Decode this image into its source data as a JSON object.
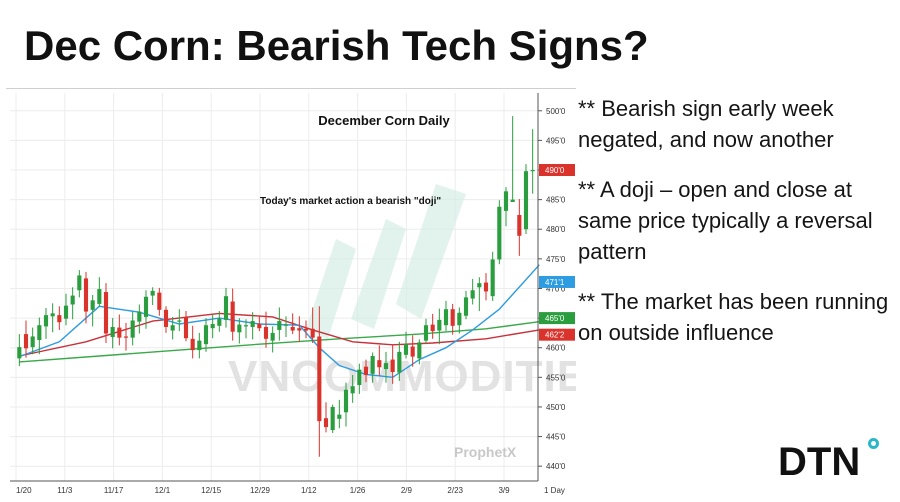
{
  "slide": {
    "title": "Dec Corn: Bearish Tech Signs?",
    "bullets": [
      "** Bearish sign early week negated, and now another",
      "** A doji – open and close at same price typically a reversal pattern",
      "** The market has been running on outside influence"
    ],
    "logo": "DTN",
    "logo_accent_color": "#2bb6c9"
  },
  "chart_data": {
    "type": "candlestick",
    "title": "December Corn Daily",
    "annotation": "Today's market action a bearish \"doji\"",
    "watermarks": [
      "VNCOMMODITIES",
      "ProphetX"
    ],
    "x_tick_labels": [
      "1/20",
      "11/3",
      "11/17",
      "12/1",
      "12/15",
      "12/29",
      "1/12",
      "1/26",
      "2/9",
      "2/23",
      "3/9",
      "1 Day"
    ],
    "y_tick_labels": [
      "500'0",
      "495'0",
      "490'0",
      "485'0",
      "480'0",
      "475'0",
      "470'0",
      "465'0",
      "460'0",
      "455'0",
      "450'0",
      "445'0",
      "440'0"
    ],
    "ylim": [
      437.5,
      503
    ],
    "price_tags": [
      {
        "label": "490'0",
        "value": 490,
        "color": "#d9332c"
      },
      {
        "label": "471'1",
        "value": 471.1,
        "color": "#2e9ce0"
      },
      {
        "label": "465'0",
        "value": 465,
        "color": "#2a9d3e"
      },
      {
        "label": "462'2",
        "value": 462.2,
        "color": "#d9332c"
      }
    ],
    "colors": {
      "up": "#2a9d3e",
      "down": "#d9332c",
      "ma_blue": "#2e9ce0",
      "ma_red": "#c8303a",
      "ma_green": "#39a94a"
    },
    "candles": [
      {
        "o": 458.2,
        "h": 462.3,
        "l": 456.9,
        "c": 460.1
      },
      {
        "o": 462.3,
        "h": 464.6,
        "l": 458.3,
        "c": 459.9
      },
      {
        "o": 460.1,
        "h": 463.4,
        "l": 458.9,
        "c": 461.9
      },
      {
        "o": 461.3,
        "h": 465.1,
        "l": 458.9,
        "c": 463.8
      },
      {
        "o": 463.6,
        "h": 466.7,
        "l": 461.5,
        "c": 465.5
      },
      {
        "o": 465.3,
        "h": 467.5,
        "l": 462.6,
        "c": 465.8
      },
      {
        "o": 465.5,
        "h": 467.0,
        "l": 463.0,
        "c": 464.3
      },
      {
        "o": 464.9,
        "h": 469.1,
        "l": 463.8,
        "c": 467.1
      },
      {
        "o": 467.3,
        "h": 470.2,
        "l": 464.8,
        "c": 468.8
      },
      {
        "o": 469.7,
        "h": 473.1,
        "l": 468.5,
        "c": 472.2
      },
      {
        "o": 471.7,
        "h": 472.8,
        "l": 464.1,
        "c": 466.1
      },
      {
        "o": 466.4,
        "h": 468.9,
        "l": 463.6,
        "c": 468.0
      },
      {
        "o": 467.4,
        "h": 471.9,
        "l": 466.9,
        "c": 469.9
      },
      {
        "o": 469.4,
        "h": 470.9,
        "l": 460.8,
        "c": 462.4
      },
      {
        "o": 461.8,
        "h": 465.0,
        "l": 459.9,
        "c": 463.5
      },
      {
        "o": 463.4,
        "h": 465.6,
        "l": 460.4,
        "c": 461.7
      },
      {
        "o": 461.9,
        "h": 464.2,
        "l": 459.5,
        "c": 461.7
      },
      {
        "o": 461.7,
        "h": 466.1,
        "l": 460.4,
        "c": 464.6
      },
      {
        "o": 464.4,
        "h": 467.3,
        "l": 462.4,
        "c": 466.1
      },
      {
        "o": 465.2,
        "h": 469.7,
        "l": 463.2,
        "c": 468.6
      },
      {
        "o": 468.8,
        "h": 470.2,
        "l": 467.2,
        "c": 469.6
      },
      {
        "o": 469.3,
        "h": 470.1,
        "l": 465.4,
        "c": 466.4
      },
      {
        "o": 466.4,
        "h": 467.0,
        "l": 462.5,
        "c": 463.5
      },
      {
        "o": 462.9,
        "h": 465.2,
        "l": 461.4,
        "c": 463.8
      },
      {
        "o": 464.6,
        "h": 466.5,
        "l": 462.8,
        "c": 464.6
      },
      {
        "o": 465.1,
        "h": 466.2,
        "l": 461.1,
        "c": 461.6
      },
      {
        "o": 461.5,
        "h": 463.7,
        "l": 458.2,
        "c": 459.6
      },
      {
        "o": 459.6,
        "h": 462.5,
        "l": 458.2,
        "c": 461.2
      },
      {
        "o": 460.6,
        "h": 465.0,
        "l": 459.3,
        "c": 463.8
      },
      {
        "o": 463.3,
        "h": 465.6,
        "l": 461.6,
        "c": 464.0
      },
      {
        "o": 463.7,
        "h": 466.2,
        "l": 462.7,
        "c": 464.9
      },
      {
        "o": 464.7,
        "h": 470.1,
        "l": 463.4,
        "c": 468.7
      },
      {
        "o": 467.8,
        "h": 470.0,
        "l": 461.2,
        "c": 462.7
      },
      {
        "o": 462.6,
        "h": 465.0,
        "l": 460.7,
        "c": 463.9
      },
      {
        "o": 463.8,
        "h": 464.8,
        "l": 461.6,
        "c": 463.8
      },
      {
        "o": 463.5,
        "h": 466.0,
        "l": 461.4,
        "c": 464.5
      },
      {
        "o": 464.0,
        "h": 465.3,
        "l": 462.8,
        "c": 463.3
      },
      {
        "o": 463.5,
        "h": 466.1,
        "l": 460.0,
        "c": 461.5
      },
      {
        "o": 461.2,
        "h": 463.6,
        "l": 459.2,
        "c": 462.5
      },
      {
        "o": 463.0,
        "h": 466.8,
        "l": 461.2,
        "c": 464.5
      },
      {
        "o": 463.8,
        "h": 465.3,
        "l": 461.8,
        "c": 463.9
      },
      {
        "o": 463.5,
        "h": 465.8,
        "l": 462.3,
        "c": 462.9
      },
      {
        "o": 463.3,
        "h": 465.3,
        "l": 461.0,
        "c": 462.9
      },
      {
        "o": 463.2,
        "h": 464.6,
        "l": 461.6,
        "c": 462.9
      },
      {
        "o": 463.2,
        "h": 466.8,
        "l": 460.8,
        "c": 461.7
      },
      {
        "o": 461.9,
        "h": 467.0,
        "l": 441.6,
        "c": 447.6
      },
      {
        "o": 448.1,
        "h": 450.8,
        "l": 445.7,
        "c": 446.6
      },
      {
        "o": 446.1,
        "h": 450.4,
        "l": 445.6,
        "c": 450.0
      },
      {
        "o": 448.0,
        "h": 451.2,
        "l": 446.4,
        "c": 448.7
      },
      {
        "o": 449.1,
        "h": 454.1,
        "l": 446.7,
        "c": 452.9
      },
      {
        "o": 452.3,
        "h": 455.4,
        "l": 450.7,
        "c": 453.5
      },
      {
        "o": 453.7,
        "h": 457.3,
        "l": 452.2,
        "c": 456.3
      },
      {
        "o": 456.8,
        "h": 458.0,
        "l": 454.2,
        "c": 455.4
      },
      {
        "o": 455.6,
        "h": 459.2,
        "l": 454.1,
        "c": 458.6
      },
      {
        "o": 457.9,
        "h": 460.4,
        "l": 455.3,
        "c": 456.7
      },
      {
        "o": 456.4,
        "h": 459.3,
        "l": 454.1,
        "c": 457.4
      },
      {
        "o": 458.0,
        "h": 460.5,
        "l": 453.9,
        "c": 455.9
      },
      {
        "o": 455.8,
        "h": 461.0,
        "l": 454.4,
        "c": 459.3
      },
      {
        "o": 458.8,
        "h": 462.7,
        "l": 458.2,
        "c": 460.6
      },
      {
        "o": 460.2,
        "h": 462.1,
        "l": 456.8,
        "c": 458.5
      },
      {
        "o": 458.2,
        "h": 461.4,
        "l": 457.2,
        "c": 460.9
      },
      {
        "o": 461.2,
        "h": 464.9,
        "l": 460.6,
        "c": 463.8
      },
      {
        "o": 463.9,
        "h": 465.7,
        "l": 461.5,
        "c": 462.8
      },
      {
        "o": 462.9,
        "h": 466.6,
        "l": 460.6,
        "c": 464.7
      },
      {
        "o": 463.8,
        "h": 467.9,
        "l": 462.8,
        "c": 466.5
      },
      {
        "o": 466.5,
        "h": 467.4,
        "l": 462.2,
        "c": 463.7
      },
      {
        "o": 463.8,
        "h": 466.8,
        "l": 462.4,
        "c": 465.9
      },
      {
        "o": 465.4,
        "h": 469.6,
        "l": 464.8,
        "c": 468.5
      },
      {
        "o": 468.3,
        "h": 471.6,
        "l": 467.3,
        "c": 469.7
      },
      {
        "o": 470.2,
        "h": 471.9,
        "l": 466.2,
        "c": 470.9
      },
      {
        "o": 471.0,
        "h": 472.6,
        "l": 468.0,
        "c": 469.5
      },
      {
        "o": 468.7,
        "h": 476.2,
        "l": 467.9,
        "c": 474.9
      },
      {
        "o": 474.9,
        "h": 484.9,
        "l": 474.1,
        "c": 483.8
      },
      {
        "o": 483.1,
        "h": 487.1,
        "l": 480.5,
        "c": 486.4
      },
      {
        "o": 484.6,
        "h": 499.1,
        "l": 484.6,
        "c": 485.0
      },
      {
        "o": 482.4,
        "h": 485.1,
        "l": 475.5,
        "c": 478.9
      },
      {
        "o": 480.0,
        "h": 491.0,
        "l": 479.2,
        "c": 489.8
      },
      {
        "o": 490.0,
        "h": 496.9,
        "l": 486.0,
        "c": 490.0
      }
    ],
    "ma_blue": [
      [
        0,
        458.5
      ],
      [
        6,
        461
      ],
      [
        12,
        467
      ],
      [
        18,
        466
      ],
      [
        24,
        464
      ],
      [
        30,
        465
      ],
      [
        36,
        464
      ],
      [
        42,
        463.8
      ],
      [
        45,
        460
      ],
      [
        48,
        457
      ],
      [
        52,
        455.5
      ],
      [
        56,
        455
      ],
      [
        60,
        458
      ],
      [
        64,
        460
      ],
      [
        68,
        463
      ],
      [
        72,
        466.5
      ],
      [
        76,
        471.5
      ],
      [
        78,
        474
      ]
    ],
    "ma_red": [
      [
        0,
        458.6
      ],
      [
        10,
        461
      ],
      [
        20,
        464.5
      ],
      [
        30,
        465.8
      ],
      [
        38,
        465.2
      ],
      [
        44,
        463
      ],
      [
        50,
        461
      ],
      [
        56,
        460.5
      ],
      [
        62,
        460.8
      ],
      [
        70,
        461.5
      ],
      [
        78,
        463
      ]
    ],
    "ma_green": [
      [
        0,
        457.6
      ],
      [
        12,
        458.6
      ],
      [
        24,
        459.6
      ],
      [
        36,
        460.6
      ],
      [
        48,
        461.5
      ],
      [
        60,
        462.3
      ],
      [
        70,
        463.2
      ],
      [
        78,
        464.4
      ]
    ]
  }
}
